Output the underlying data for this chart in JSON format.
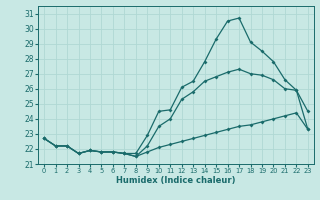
{
  "xlabel": "Humidex (Indice chaleur)",
  "xlim": [
    -0.5,
    23.5
  ],
  "ylim": [
    21,
    31.5
  ],
  "yticks": [
    21,
    22,
    23,
    24,
    25,
    26,
    27,
    28,
    29,
    30,
    31
  ],
  "xticks": [
    0,
    1,
    2,
    3,
    4,
    5,
    6,
    7,
    8,
    9,
    10,
    11,
    12,
    13,
    14,
    15,
    16,
    17,
    18,
    19,
    20,
    21,
    22,
    23
  ],
  "bg_color": "#c8e8e4",
  "grid_color": "#b0d8d4",
  "line_color": "#1a6b6b",
  "series": [
    {
      "x": [
        0,
        1,
        2,
        3,
        4,
        5,
        6,
        7,
        8,
        9,
        10,
        11,
        12,
        13,
        14,
        15,
        16,
        17,
        18,
        19,
        20,
        21,
        22,
        23
      ],
      "y": [
        22.7,
        22.2,
        22.2,
        21.7,
        21.9,
        21.8,
        21.8,
        21.7,
        21.7,
        22.9,
        24.5,
        24.6,
        26.1,
        26.5,
        27.8,
        29.3,
        30.5,
        30.7,
        29.1,
        28.5,
        27.8,
        26.6,
        25.9,
        24.5
      ]
    },
    {
      "x": [
        0,
        1,
        2,
        3,
        4,
        5,
        6,
        7,
        8,
        9,
        10,
        11,
        12,
        13,
        14,
        15,
        16,
        17,
        18,
        19,
        20,
        21,
        22,
        23
      ],
      "y": [
        22.7,
        22.2,
        22.2,
        21.7,
        21.9,
        21.8,
        21.8,
        21.7,
        21.5,
        22.2,
        23.5,
        24.0,
        25.3,
        25.8,
        26.5,
        26.8,
        27.1,
        27.3,
        27.0,
        26.9,
        26.6,
        26.0,
        25.9,
        23.3
      ]
    },
    {
      "x": [
        0,
        1,
        2,
        3,
        4,
        5,
        6,
        7,
        8,
        9,
        10,
        11,
        12,
        13,
        14,
        15,
        16,
        17,
        18,
        19,
        20,
        21,
        22,
        23
      ],
      "y": [
        22.7,
        22.2,
        22.2,
        21.7,
        21.9,
        21.8,
        21.8,
        21.7,
        21.5,
        21.8,
        22.1,
        22.3,
        22.5,
        22.7,
        22.9,
        23.1,
        23.3,
        23.5,
        23.6,
        23.8,
        24.0,
        24.2,
        24.4,
        23.3
      ]
    }
  ]
}
